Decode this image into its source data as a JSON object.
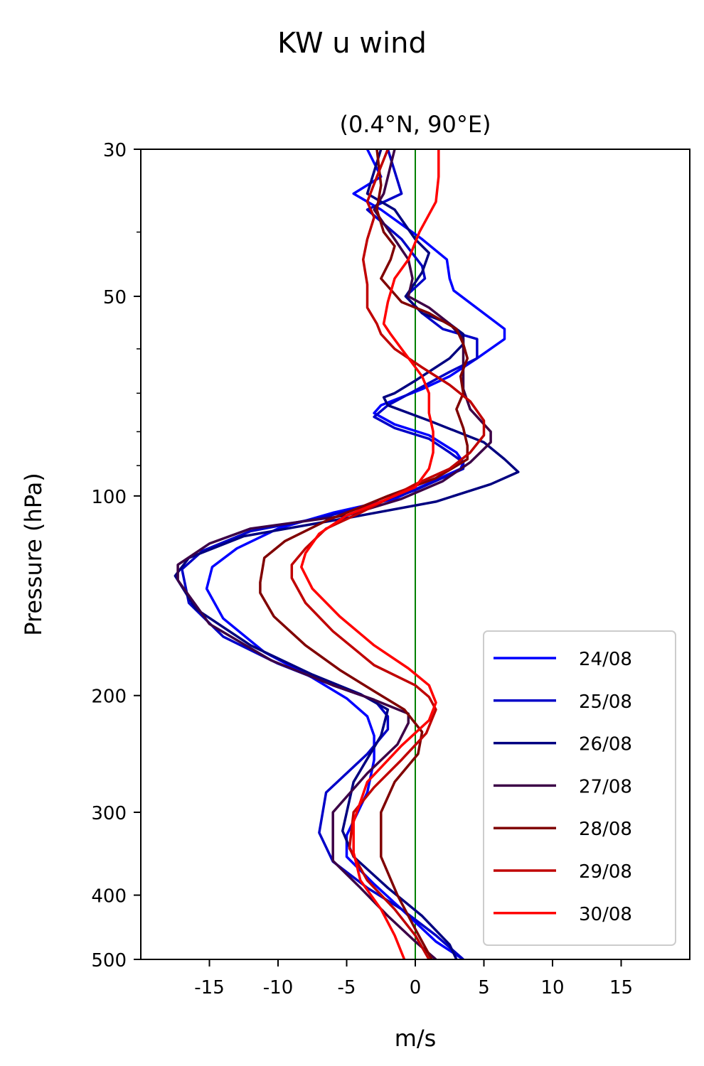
{
  "chart_data": {
    "type": "line",
    "title": "KW u wind",
    "subtitle": "(0.4°N, 90°E)",
    "xlabel": "m/s",
    "ylabel": "Pressure (hPa)",
    "xlim": [
      -20,
      20
    ],
    "ylim": [
      500,
      30
    ],
    "yscale": "log",
    "x_ticks": [
      -15,
      -10,
      -5,
      0,
      5,
      10,
      15
    ],
    "x_tick_labels": [
      "-15",
      "-10",
      "-5",
      "0",
      "5",
      "10",
      "15"
    ],
    "y_ticks": [
      30,
      50,
      100,
      200,
      300,
      400,
      500
    ],
    "y_tick_labels": [
      "30",
      "50",
      "100",
      "200",
      "300",
      "400",
      "500"
    ],
    "y_minor_ticks": [
      40,
      60,
      70,
      80,
      90
    ],
    "zero_line": {
      "x": 0,
      "color": "#008000"
    },
    "legend_position": "lower-right",
    "grid": false,
    "series": [
      {
        "name": "24/08",
        "color": "#0000ff",
        "points": [
          [
            -3.5,
            30
          ],
          [
            -2.5,
            33
          ],
          [
            -4.5,
            35
          ],
          [
            -2.5,
            37
          ],
          [
            0.5,
            41
          ],
          [
            2.3,
            44
          ],
          [
            2.5,
            47
          ],
          [
            2.8,
            49
          ],
          [
            6.5,
            56
          ],
          [
            6.5,
            58
          ],
          [
            4.5,
            62
          ],
          [
            2.5,
            66
          ],
          [
            0.5,
            69
          ],
          [
            -2.5,
            73
          ],
          [
            -3,
            75
          ],
          [
            -1.5,
            78
          ],
          [
            1,
            81
          ],
          [
            3,
            86
          ],
          [
            3.5,
            89
          ],
          [
            3.3,
            91
          ],
          [
            -1.5,
            101
          ],
          [
            -6,
            106
          ],
          [
            -10,
            112
          ],
          [
            -13,
            120
          ],
          [
            -14.8,
            128
          ],
          [
            -15.2,
            138
          ],
          [
            -14,
            153
          ],
          [
            -11,
            172
          ],
          [
            -7.5,
            188
          ],
          [
            -5,
            202
          ],
          [
            -3.5,
            215
          ],
          [
            -3,
            230
          ],
          [
            -3,
            250
          ],
          [
            -3.5,
            280
          ],
          [
            -5,
            325
          ],
          [
            -5,
            350
          ],
          [
            -3,
            385
          ],
          [
            -1,
            420
          ],
          [
            1.5,
            470
          ],
          [
            3.5,
            500
          ]
        ]
      },
      {
        "name": "25/08",
        "color": "#0000c8",
        "points": [
          [
            -2,
            30
          ],
          [
            -1,
            35
          ],
          [
            -3.5,
            37
          ],
          [
            -1,
            41
          ],
          [
            0.5,
            45
          ],
          [
            0.7,
            47
          ],
          [
            -0.7,
            50
          ],
          [
            0.5,
            53
          ],
          [
            2,
            56
          ],
          [
            4.5,
            58
          ],
          [
            4.5,
            62
          ],
          [
            2.5,
            65
          ],
          [
            -2,
            73
          ],
          [
            -3,
            76
          ],
          [
            -1.5,
            79
          ],
          [
            1,
            82
          ],
          [
            2.5,
            86
          ],
          [
            3.5,
            89
          ],
          [
            3.5,
            91
          ],
          [
            0,
            98
          ],
          [
            -3,
            103
          ],
          [
            -7,
            108
          ],
          [
            -12,
            113
          ],
          [
            -15.5,
            121
          ],
          [
            -17,
            129
          ],
          [
            -16.5,
            145
          ],
          [
            -14,
            163
          ],
          [
            -10,
            179
          ],
          [
            -6,
            193
          ],
          [
            -3,
            203
          ],
          [
            -2,
            215
          ],
          [
            -2,
            225
          ],
          [
            -3.5,
            245
          ],
          [
            -6.5,
            280
          ],
          [
            -7,
            322
          ],
          [
            -6,
            356
          ],
          [
            -3.5,
            390
          ],
          [
            -1,
            420
          ],
          [
            1.5,
            460
          ],
          [
            3.5,
            500
          ]
        ]
      },
      {
        "name": "26/08",
        "color": "#000080",
        "points": [
          [
            -2.5,
            30
          ],
          [
            -3.5,
            35
          ],
          [
            -1.5,
            37
          ],
          [
            0,
            41
          ],
          [
            1,
            43
          ],
          [
            0.5,
            46
          ],
          [
            -0.7,
            50
          ],
          [
            0.5,
            53
          ],
          [
            2.5,
            55
          ],
          [
            3.5,
            57
          ],
          [
            3.5,
            59
          ],
          [
            2.5,
            62
          ],
          [
            0,
            67
          ],
          [
            -1.5,
            70
          ],
          [
            -2.3,
            71
          ],
          [
            -2,
            73
          ],
          [
            1,
            77
          ],
          [
            5,
            83
          ],
          [
            6.5,
            88
          ],
          [
            7.5,
            92
          ],
          [
            5.5,
            96
          ],
          [
            1.5,
            102
          ],
          [
            -5,
            108
          ],
          [
            -12.5,
            115
          ],
          [
            -16.5,
            124
          ],
          [
            -17.5,
            132
          ],
          [
            -16,
            148
          ],
          [
            -12,
            168
          ],
          [
            -7.5,
            186
          ],
          [
            -4,
            199
          ],
          [
            -2,
            210
          ],
          [
            -2.5,
            230
          ],
          [
            -4.5,
            270
          ],
          [
            -5.3,
            320
          ],
          [
            -4.5,
            350
          ],
          [
            -2,
            390
          ],
          [
            0.5,
            430
          ],
          [
            2.5,
            475
          ],
          [
            3,
            500
          ]
        ]
      },
      {
        "name": "27/08",
        "color": "#3c0046",
        "points": [
          [
            -1.5,
            30
          ],
          [
            -2.3,
            35
          ],
          [
            -3,
            37
          ],
          [
            -1.5,
            41
          ],
          [
            -0.5,
            44
          ],
          [
            -0.2,
            47
          ],
          [
            -0.5,
            50
          ],
          [
            1,
            52
          ],
          [
            2.5,
            55
          ],
          [
            3.5,
            58
          ],
          [
            3.5,
            61
          ],
          [
            3.5,
            64
          ],
          [
            3.5,
            69
          ],
          [
            4,
            74
          ],
          [
            5.5,
            80
          ],
          [
            5.5,
            83
          ],
          [
            4,
            89
          ],
          [
            2,
            95
          ],
          [
            -1,
            101
          ],
          [
            -5,
            107
          ],
          [
            -12,
            112
          ],
          [
            -15,
            118
          ],
          [
            -17.3,
            127
          ],
          [
            -17.3,
            134
          ],
          [
            -15,
            156
          ],
          [
            -10.5,
            177
          ],
          [
            -6,
            193
          ],
          [
            -3,
            203
          ],
          [
            -0.5,
            213
          ],
          [
            -0.5,
            220
          ],
          [
            -1.3,
            237
          ],
          [
            -3.5,
            262
          ],
          [
            -6,
            300
          ],
          [
            -6,
            355
          ],
          [
            -4,
            390
          ],
          [
            -2,
            430
          ],
          [
            0,
            470
          ],
          [
            1.5,
            500
          ]
        ]
      },
      {
        "name": "28/08",
        "color": "#800000",
        "points": [
          [
            -2.8,
            30
          ],
          [
            -2.5,
            34
          ],
          [
            -2.8,
            37
          ],
          [
            -2.3,
            40
          ],
          [
            -1.5,
            42
          ],
          [
            -1.8,
            44
          ],
          [
            -2.5,
            47
          ],
          [
            -1,
            51
          ],
          [
            1,
            53
          ],
          [
            3,
            56
          ],
          [
            3.5,
            59
          ],
          [
            3.8,
            62
          ],
          [
            3.3,
            66
          ],
          [
            3.5,
            70
          ],
          [
            3,
            74
          ],
          [
            3.5,
            79
          ],
          [
            3.8,
            84
          ],
          [
            3.8,
            88
          ],
          [
            1.5,
            94
          ],
          [
            -2,
            100
          ],
          [
            -4,
            104
          ],
          [
            -6.5,
            109
          ],
          [
            -9.5,
            117
          ],
          [
            -11,
            124
          ],
          [
            -11.3,
            135
          ],
          [
            -11.3,
            140
          ],
          [
            -10.3,
            152
          ],
          [
            -8,
            168
          ],
          [
            -5.5,
            183
          ],
          [
            -3,
            197
          ],
          [
            -0.8,
            210
          ],
          [
            0.5,
            227
          ],
          [
            0.2,
            245
          ],
          [
            -1.5,
            270
          ],
          [
            -2.5,
            300
          ],
          [
            -2.5,
            350
          ],
          [
            -1.3,
            400
          ],
          [
            0,
            450
          ],
          [
            1.2,
            500
          ]
        ]
      },
      {
        "name": "29/08",
        "color": "#c00000",
        "points": [
          [
            -2,
            30
          ],
          [
            -2.8,
            33
          ],
          [
            -3.5,
            36
          ],
          [
            -3,
            38
          ],
          [
            -3.5,
            41
          ],
          [
            -3.8,
            44
          ],
          [
            -3.5,
            48
          ],
          [
            -3.5,
            52
          ],
          [
            -2.8,
            55
          ],
          [
            -2.5,
            57
          ],
          [
            -1.5,
            60
          ],
          [
            0.5,
            64
          ],
          [
            2.5,
            68
          ],
          [
            4,
            72
          ],
          [
            5,
            77
          ],
          [
            5,
            81
          ],
          [
            4,
            86
          ],
          [
            2.5,
            91
          ],
          [
            0,
            96
          ],
          [
            -2,
            101
          ],
          [
            -4,
            106
          ],
          [
            -6.5,
            112
          ],
          [
            -8,
            120
          ],
          [
            -9,
            127
          ],
          [
            -9,
            133
          ],
          [
            -8,
            145
          ],
          [
            -6,
            160
          ],
          [
            -3,
            180
          ],
          [
            0,
            193
          ],
          [
            1,
            201
          ],
          [
            1.5,
            210
          ],
          [
            0.8,
            228
          ],
          [
            -1,
            250
          ],
          [
            -3,
            275
          ],
          [
            -4.5,
            300
          ],
          [
            -4.8,
            340
          ],
          [
            -3.5,
            380
          ],
          [
            -1.5,
            420
          ],
          [
            0,
            460
          ],
          [
            1,
            500
          ]
        ]
      },
      {
        "name": "30/08",
        "color": "#ff0000",
        "points": [
          [
            1.7,
            30
          ],
          [
            1.7,
            33
          ],
          [
            1.5,
            36
          ],
          [
            0.3,
            40
          ],
          [
            -0.5,
            44
          ],
          [
            -1.5,
            47
          ],
          [
            -2,
            51
          ],
          [
            -2.3,
            55
          ],
          [
            -1.8,
            57
          ],
          [
            -1,
            60
          ],
          [
            0.5,
            66
          ],
          [
            1,
            70
          ],
          [
            1,
            75
          ],
          [
            1.3,
            80
          ],
          [
            1.3,
            86
          ],
          [
            1,
            91
          ],
          [
            0,
            97
          ],
          [
            -2.5,
            102
          ],
          [
            -5,
            107
          ],
          [
            -7,
            114
          ],
          [
            -8,
            122
          ],
          [
            -8.3,
            128
          ],
          [
            -7.5,
            138
          ],
          [
            -5.5,
            152
          ],
          [
            -3,
            168
          ],
          [
            -0.5,
            182
          ],
          [
            1,
            193
          ],
          [
            1.5,
            205
          ],
          [
            1,
            218
          ],
          [
            -1,
            238
          ],
          [
            -3.5,
            270
          ],
          [
            -4.5,
            310
          ],
          [
            -4.5,
            345
          ],
          [
            -4,
            380
          ],
          [
            -2.5,
            420
          ],
          [
            -1.5,
            460
          ],
          [
            -0.8,
            500
          ]
        ]
      }
    ]
  }
}
